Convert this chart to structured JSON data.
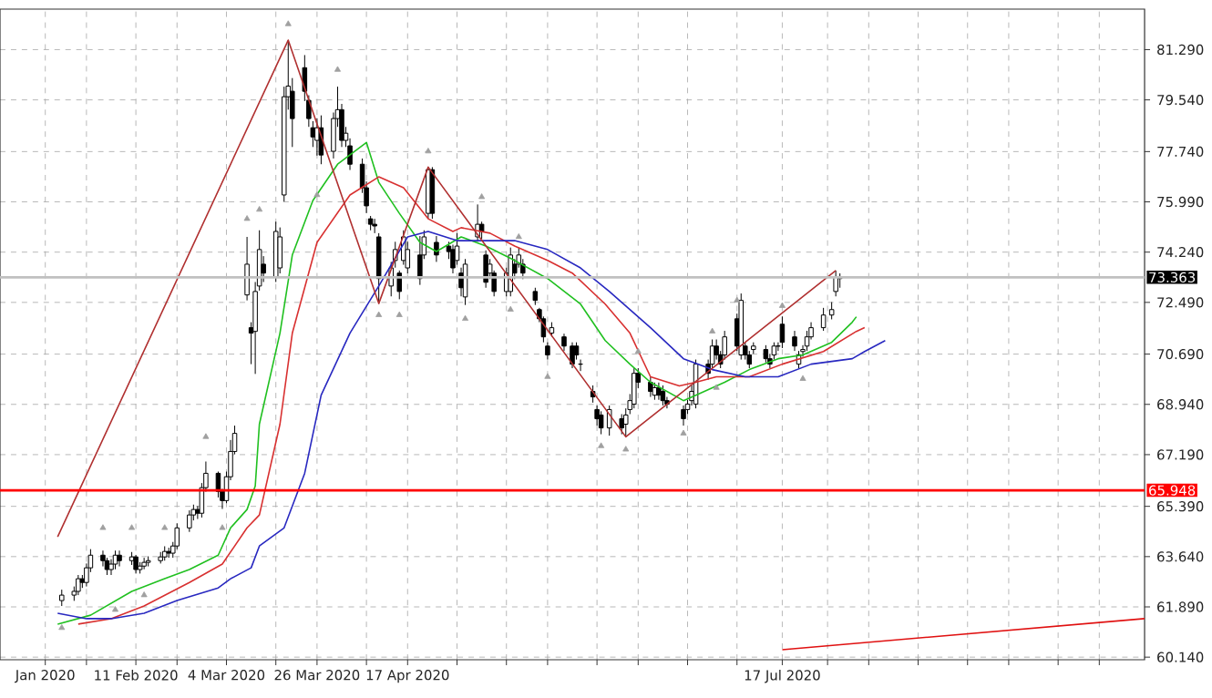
{
  "chart_data": {
    "type": "candlestick",
    "color": "#000000",
    "x": [
      "2020-01-24",
      "2020-01-27",
      "2020-01-28",
      "2020-01-29",
      "2020-01-30",
      "2020-01-31",
      "2020-02-03",
      "2020-02-04",
      "2020-02-05",
      "2020-02-06",
      "2020-02-07",
      "2020-02-10",
      "2020-02-11",
      "2020-02-12",
      "2020-02-13",
      "2020-02-14",
      "2020-02-17",
      "2020-02-18",
      "2020-02-19",
      "2020-02-20",
      "2020-02-21",
      "2020-02-24",
      "2020-02-25",
      "2020-02-26",
      "2020-02-27",
      "2020-02-28",
      "2020-03-02",
      "2020-03-03",
      "2020-03-04",
      "2020-03-05",
      "2020-03-06",
      "2020-03-09",
      "2020-03-10",
      "2020-03-11",
      "2020-03-12",
      "2020-03-13",
      "2020-03-16",
      "2020-03-17",
      "2020-03-18",
      "2020-03-19",
      "2020-03-20",
      "2020-03-23",
      "2020-03-24",
      "2020-03-25",
      "2020-03-26",
      "2020-03-27",
      "2020-03-30",
      "2020-03-31",
      "2020-04-01",
      "2020-04-02",
      "2020-04-03",
      "2020-04-06",
      "2020-04-07",
      "2020-04-08",
      "2020-04-09",
      "2020-04-10",
      "2020-04-13",
      "2020-04-14",
      "2020-04-15",
      "2020-04-16",
      "2020-04-17",
      "2020-04-20",
      "2020-04-21",
      "2020-04-22",
      "2020-04-23",
      "2020-04-24",
      "2020-04-27",
      "2020-04-28",
      "2020-04-29",
      "2020-04-30",
      "2020-05-01",
      "2020-05-04",
      "2020-05-05",
      "2020-05-06",
      "2020-05-07",
      "2020-05-08",
      "2020-05-11",
      "2020-05-12",
      "2020-05-13",
      "2020-05-14",
      "2020-05-15",
      "2020-05-18",
      "2020-05-19",
      "2020-05-20",
      "2020-05-21",
      "2020-05-22",
      "2020-05-25",
      "2020-05-27",
      "2020-05-28",
      "2020-05-29",
      "2020-06-01",
      "2020-06-02",
      "2020-06-03",
      "2020-06-05",
      "2020-06-08",
      "2020-06-09",
      "2020-06-10",
      "2020-06-11",
      "2020-06-12",
      "2020-06-15",
      "2020-06-16",
      "2020-06-17",
      "2020-06-18",
      "2020-06-19",
      "2020-06-23",
      "2020-06-24",
      "2020-06-25",
      "2020-06-26",
      "2020-06-29",
      "2020-06-30",
      "2020-07-01",
      "2020-07-02",
      "2020-07-03",
      "2020-07-06",
      "2020-07-07",
      "2020-07-08",
      "2020-07-09",
      "2020-07-10",
      "2020-07-13",
      "2020-07-14",
      "2020-07-15",
      "2020-07-16",
      "2020-07-17",
      "2020-07-20",
      "2020-07-21",
      "2020-07-22",
      "2020-07-23",
      "2020-07-24",
      "2020-07-27",
      "2020-07-29",
      "2020-07-30",
      "2020-07-31"
    ],
    "ohlc": [
      [
        62.11,
        62.49,
        61.92,
        62.3
      ],
      [
        62.3,
        62.6,
        62.1,
        62.43
      ],
      [
        62.43,
        63.0,
        62.3,
        62.87
      ],
      [
        62.87,
        63.0,
        62.55,
        62.74
      ],
      [
        62.74,
        63.4,
        62.6,
        63.25
      ],
      [
        63.25,
        63.9,
        63.1,
        63.69
      ],
      [
        63.69,
        63.85,
        63.3,
        63.5
      ],
      [
        63.5,
        63.6,
        63.0,
        63.19
      ],
      [
        63.19,
        63.55,
        63.0,
        63.38
      ],
      [
        63.38,
        63.85,
        63.2,
        63.69
      ],
      [
        63.69,
        63.85,
        63.3,
        63.5
      ],
      [
        63.5,
        63.8,
        63.35,
        63.63
      ],
      [
        63.63,
        63.7,
        63.05,
        63.19
      ],
      [
        63.19,
        63.45,
        63.05,
        63.31
      ],
      [
        63.31,
        63.6,
        63.2,
        63.44
      ],
      [
        63.44,
        63.65,
        63.3,
        63.5
      ],
      [
        63.5,
        63.8,
        63.4,
        63.63
      ],
      [
        63.63,
        64.0,
        63.5,
        63.82
      ],
      [
        63.82,
        63.95,
        63.6,
        63.76
      ],
      [
        63.76,
        64.15,
        63.6,
        64.01
      ],
      [
        64.01,
        64.8,
        63.9,
        64.64
      ],
      [
        64.64,
        65.25,
        64.5,
        65.09
      ],
      [
        65.09,
        65.45,
        64.9,
        65.28
      ],
      [
        65.28,
        65.4,
        64.95,
        65.15
      ],
      [
        65.15,
        66.2,
        65.0,
        66.04
      ],
      [
        66.04,
        66.95,
        65.9,
        66.54
      ],
      [
        66.54,
        66.6,
        65.7,
        65.91
      ],
      [
        65.91,
        66.0,
        65.3,
        65.59
      ],
      [
        65.59,
        66.6,
        65.5,
        66.42
      ],
      [
        66.42,
        67.7,
        66.3,
        67.3
      ],
      [
        67.3,
        68.2,
        67.2,
        67.93
      ],
      [
        72.75,
        74.77,
        72.56,
        73.82
      ],
      [
        71.61,
        71.8,
        70.34,
        71.42
      ],
      [
        71.48,
        73.2,
        70.0,
        72.87
      ],
      [
        73.06,
        75.0,
        72.9,
        74.33
      ],
      [
        73.82,
        74.1,
        73.2,
        73.51
      ],
      [
        73.38,
        75.3,
        73.2,
        74.96
      ],
      [
        73.69,
        75.1,
        73.5,
        74.77
      ],
      [
        76.23,
        80.0,
        76.0,
        79.65
      ],
      [
        79.65,
        81.62,
        79.2,
        80.02
      ],
      [
        79.84,
        80.3,
        77.9,
        78.89
      ],
      [
        80.66,
        81.1,
        79.5,
        79.84
      ],
      [
        79.52,
        79.7,
        78.6,
        78.89
      ],
      [
        78.57,
        78.8,
        77.9,
        78.25
      ],
      [
        78.13,
        78.9,
        77.6,
        78.57
      ],
      [
        78.57,
        79.0,
        77.3,
        77.62
      ],
      [
        77.75,
        79.1,
        77.5,
        78.89
      ],
      [
        78.89,
        80.0,
        78.6,
        79.2
      ],
      [
        79.2,
        79.4,
        77.9,
        78.13
      ],
      [
        78.13,
        78.6,
        77.9,
        78.38
      ],
      [
        77.94,
        78.2,
        77.1,
        77.3
      ],
      [
        77.3,
        77.5,
        76.3,
        76.48
      ],
      [
        76.48,
        76.7,
        75.6,
        75.85
      ],
      [
        75.4,
        75.5,
        75.0,
        75.21
      ],
      [
        75.21,
        75.4,
        74.9,
        75.15
      ],
      [
        74.77,
        74.9,
        72.45,
        73.32
      ],
      [
        73.06,
        73.9,
        72.7,
        73.69
      ],
      [
        73.95,
        74.6,
        73.7,
        74.33
      ],
      [
        73.51,
        73.6,
        72.6,
        72.87
      ],
      [
        73.95,
        75.0,
        73.8,
        74.77
      ],
      [
        73.69,
        74.6,
        73.5,
        74.33
      ],
      [
        74.14,
        74.8,
        73.1,
        73.32
      ],
      [
        74.14,
        75.0,
        74.0,
        74.77
      ],
      [
        75.59,
        77.2,
        75.4,
        77.11
      ],
      [
        77.11,
        77.2,
        75.4,
        75.59
      ],
      [
        74.58,
        74.8,
        73.9,
        74.14
      ],
      [
        74.45,
        74.6,
        74.0,
        74.26
      ],
      [
        74.33,
        74.5,
        73.5,
        73.69
      ],
      [
        73.95,
        74.9,
        73.8,
        74.45
      ],
      [
        73.51,
        73.7,
        72.7,
        73.0
      ],
      [
        72.68,
        74.0,
        72.4,
        73.82
      ],
      [
        74.77,
        75.9,
        74.6,
        75.21
      ],
      [
        75.21,
        75.3,
        74.7,
        74.96
      ],
      [
        74.14,
        74.3,
        73.0,
        73.19
      ],
      [
        73.51,
        74.0,
        73.3,
        73.82
      ],
      [
        73.51,
        73.6,
        72.7,
        72.87
      ],
      [
        72.87,
        73.7,
        72.7,
        73.51
      ],
      [
        72.87,
        74.4,
        72.7,
        74.14
      ],
      [
        73.82,
        74.0,
        73.3,
        73.51
      ],
      [
        73.82,
        74.4,
        73.7,
        74.14
      ],
      [
        73.82,
        74.0,
        73.3,
        73.51
      ],
      [
        72.87,
        73.0,
        72.4,
        72.56
      ],
      [
        72.24,
        72.3,
        71.8,
        71.92
      ],
      [
        71.92,
        72.0,
        71.1,
        71.29
      ],
      [
        70.97,
        71.1,
        70.5,
        70.66
      ],
      [
        71.42,
        71.8,
        71.3,
        71.61
      ],
      [
        71.29,
        71.4,
        70.8,
        70.97
      ],
      [
        70.97,
        71.1,
        70.2,
        70.34
      ],
      [
        70.97,
        71.1,
        70.5,
        70.66
      ],
      [
        70.34,
        70.5,
        70.1,
        70.34
      ],
      [
        69.39,
        69.6,
        69.0,
        69.2
      ],
      [
        68.76,
        68.9,
        68.2,
        68.44
      ],
      [
        68.57,
        68.7,
        67.9,
        68.12
      ],
      [
        68.12,
        68.9,
        67.85,
        68.76
      ],
      [
        68.44,
        68.6,
        67.9,
        68.12
      ],
      [
        68.25,
        68.8,
        67.81,
        68.57
      ],
      [
        68.76,
        69.3,
        68.6,
        69.07
      ],
      [
        68.95,
        70.2,
        68.8,
        70.02
      ],
      [
        70.02,
        70.2,
        69.5,
        69.71
      ],
      [
        69.71,
        69.9,
        69.2,
        69.39
      ],
      [
        69.26,
        69.7,
        69.1,
        69.52
      ],
      [
        69.52,
        69.7,
        69.1,
        69.26
      ],
      [
        69.39,
        69.6,
        68.9,
        69.07
      ],
      [
        69.07,
        69.2,
        68.8,
        68.95
      ],
      [
        68.76,
        68.9,
        68.2,
        68.44
      ],
      [
        68.76,
        69.1,
        68.6,
        68.95
      ],
      [
        69.07,
        69.6,
        68.9,
        69.39
      ],
      [
        68.95,
        70.5,
        68.8,
        70.34
      ],
      [
        70.34,
        70.5,
        69.8,
        70.02
      ],
      [
        70.34,
        71.2,
        70.2,
        70.97
      ],
      [
        70.97,
        71.2,
        70.5,
        70.66
      ],
      [
        70.66,
        70.8,
        70.2,
        70.34
      ],
      [
        70.66,
        71.5,
        70.5,
        71.29
      ],
      [
        71.92,
        72.1,
        70.8,
        70.97
      ],
      [
        70.66,
        72.8,
        70.5,
        72.56
      ],
      [
        70.97,
        71.1,
        70.5,
        70.66
      ],
      [
        70.66,
        70.8,
        70.2,
        70.34
      ],
      [
        70.85,
        71.1,
        70.7,
        70.97
      ],
      [
        70.85,
        71.0,
        70.4,
        70.53
      ],
      [
        70.53,
        70.7,
        70.2,
        70.34
      ],
      [
        70.66,
        71.1,
        70.5,
        70.97
      ],
      [
        70.97,
        71.1,
        70.8,
        70.97
      ],
      [
        71.73,
        72.0,
        70.9,
        71.1
      ],
      [
        71.29,
        71.5,
        70.8,
        70.97
      ],
      [
        70.34,
        70.8,
        70.2,
        70.66
      ],
      [
        70.78,
        71.0,
        70.6,
        70.85
      ],
      [
        70.97,
        71.5,
        70.8,
        71.29
      ],
      [
        71.29,
        71.8,
        71.2,
        71.61
      ],
      [
        71.61,
        72.3,
        71.5,
        72.05
      ],
      [
        72.05,
        72.5,
        71.9,
        72.24
      ],
      [
        72.87,
        73.6,
        72.7,
        73.38
      ],
      [
        73.32,
        73.5,
        73.0,
        73.36
      ]
    ],
    "series": [
      {
        "type": "line",
        "color": "#20c020",
        "x": [
          "2020-01-23",
          "2020-01-31",
          "2020-02-10",
          "2020-02-18",
          "2020-02-24",
          "2020-03-02",
          "2020-03-05",
          "2020-03-09",
          "2020-03-11",
          "2020-03-12",
          "2020-03-17",
          "2020-03-20",
          "2020-03-25",
          "2020-03-31",
          "2020-04-07",
          "2020-04-10",
          "2020-04-15",
          "2020-04-20",
          "2020-04-24",
          "2020-04-30",
          "2020-05-06",
          "2020-05-13",
          "2020-05-21",
          "2020-05-29",
          "2020-06-04",
          "2020-06-10",
          "2020-06-15",
          "2020-06-23",
          "2020-06-26",
          "2020-07-03",
          "2020-07-09",
          "2020-07-16",
          "2020-07-22",
          "2020-07-29",
          "2020-08-03",
          "2020-08-04"
        ],
        "values": [
          61.29,
          61.6,
          62.43,
          62.87,
          63.19,
          63.69,
          64.64,
          65.28,
          66.1,
          68.25,
          71.42,
          74.14,
          76.04,
          77.3,
          78.06,
          76.67,
          75.59,
          74.58,
          74.26,
          74.77,
          74.45,
          73.95,
          73.32,
          72.43,
          71.16,
          70.34,
          69.71,
          69.07,
          69.26,
          69.71,
          70.15,
          70.53,
          70.66,
          71.1,
          71.8,
          71.99
        ]
      },
      {
        "type": "line",
        "color": "#d83030",
        "x": [
          "2020-01-28",
          "2020-02-05",
          "2020-02-13",
          "2020-02-24",
          "2020-03-03",
          "2020-03-09",
          "2020-03-12",
          "2020-03-17",
          "2020-03-20",
          "2020-03-26",
          "2020-04-03",
          "2020-04-10",
          "2020-04-16",
          "2020-04-22",
          "2020-04-28",
          "2020-04-30",
          "2020-05-07",
          "2020-05-13",
          "2020-05-21",
          "2020-05-27",
          "2020-06-04",
          "2020-06-10",
          "2020-06-15",
          "2020-06-22",
          "2020-06-26",
          "2020-07-01",
          "2020-07-09",
          "2020-07-17",
          "2020-07-27",
          "2020-08-04",
          "2020-08-06"
        ],
        "values": [
          61.29,
          61.48,
          61.92,
          62.74,
          63.38,
          64.64,
          65.09,
          68.25,
          71.42,
          74.58,
          76.23,
          76.86,
          76.48,
          75.4,
          74.96,
          75.09,
          74.9,
          74.45,
          73.95,
          73.51,
          72.43,
          71.42,
          69.9,
          69.58,
          69.71,
          69.9,
          69.9,
          70.34,
          70.78,
          71.48,
          71.61
        ]
      },
      {
        "type": "line",
        "color": "#2828c0",
        "x": [
          "2020-01-23",
          "2020-01-30",
          "2020-02-05",
          "2020-02-13",
          "2020-02-21",
          "2020-03-02",
          "2020-03-05",
          "2020-03-10",
          "2020-03-12",
          "2020-03-18",
          "2020-03-23",
          "2020-03-27",
          "2020-04-03",
          "2020-04-10",
          "2020-04-17",
          "2020-04-22",
          "2020-04-29",
          "2020-05-13",
          "2020-05-21",
          "2020-05-29",
          "2020-06-05",
          "2020-06-15",
          "2020-06-23",
          "2020-06-30",
          "2020-07-08",
          "2020-07-16",
          "2020-07-24",
          "2020-08-03",
          "2020-08-06",
          "2020-08-11"
        ],
        "values": [
          61.67,
          61.48,
          61.48,
          61.67,
          62.11,
          62.55,
          62.87,
          63.25,
          64.01,
          64.64,
          66.54,
          69.26,
          71.42,
          73.06,
          74.77,
          74.96,
          74.64,
          74.64,
          74.33,
          73.69,
          72.87,
          71.61,
          70.53,
          70.15,
          69.9,
          69.9,
          70.34,
          70.53,
          70.78,
          71.16
        ]
      },
      {
        "type": "line",
        "color": "#b03030",
        "x": [
          "2020-01-23",
          "2020-03-19",
          "2020-04-10",
          "2020-04-22",
          "2020-06-09",
          "2020-07-30"
        ],
        "values": [
          64.33,
          81.62,
          72.45,
          77.2,
          67.81,
          73.6
        ]
      },
      {
        "type": "line",
        "color": "#e01010",
        "x": [
          "2020-07-17",
          "2020-10-13"
        ],
        "values": [
          60.4,
          61.48
        ]
      },
      {
        "type": "scatter",
        "marker": "triangle",
        "color": "#a0a0a0",
        "x": [
          "2020-02-03",
          "2020-02-10",
          "2020-02-18",
          "2020-02-28",
          "2020-03-09",
          "2020-03-12",
          "2020-03-19",
          "2020-03-31",
          "2020-04-22",
          "2020-05-05",
          "2020-05-14",
          "2020-06-12",
          "2020-06-30",
          "2020-07-06",
          "2020-07-17"
        ],
        "values": [
          64.64,
          64.64,
          64.64,
          67.81,
          75.4,
          75.72,
          82.18,
          80.59,
          77.75,
          76.16,
          74.77,
          70.78,
          71.48,
          72.56,
          72.37
        ]
      },
      {
        "type": "scatter",
        "marker": "triangle",
        "color": "#a0a0a0",
        "x": [
          "2020-01-24",
          "2020-02-06",
          "2020-02-13",
          "2020-03-03",
          "2020-03-26",
          "2020-04-10",
          "2020-04-15",
          "2020-05-01",
          "2020-05-12",
          "2020-05-21",
          "2020-06-03",
          "2020-06-09",
          "2020-06-23",
          "2020-07-01",
          "2020-07-22"
        ],
        "values": [
          61.16,
          61.79,
          62.3,
          64.64,
          76.23,
          72.05,
          72.05,
          71.92,
          72.24,
          69.9,
          67.49,
          67.37,
          67.93,
          69.52,
          69.83
        ]
      }
    ],
    "ref_lines": [
      {
        "axis": "y",
        "value": 65.948,
        "label": "65.948",
        "color": "#ff0000"
      },
      {
        "axis": "y",
        "value": 73.363,
        "label": "73.363",
        "color": "#c0c0c0"
      }
    ],
    "xlim": [
      "2020-01-09",
      "2020-10-13"
    ],
    "ylim": [
      60.05,
      82.7
    ],
    "xticks": [
      {
        "value": "2020-01-20",
        "label": "Jan 2020"
      },
      {
        "value": "2020-01-30",
        "label": null
      },
      {
        "value": "2020-02-11",
        "label": "11 Feb 2020"
      },
      {
        "value": "2020-02-21",
        "label": null
      },
      {
        "value": "2020-03-04",
        "label": "4 Mar 2020"
      },
      {
        "value": "2020-03-16",
        "label": null
      },
      {
        "value": "2020-03-26",
        "label": "26 Mar 2020"
      },
      {
        "value": "2020-04-07",
        "label": null
      },
      {
        "value": "2020-04-17",
        "label": "17 Apr 2020"
      },
      {
        "value": "2020-04-29",
        "label": null
      },
      {
        "value": "2020-05-11",
        "label": null
      },
      {
        "value": "2020-05-21",
        "label": null
      },
      {
        "value": "2020-06-02",
        "label": null
      },
      {
        "value": "2020-06-12",
        "label": null
      },
      {
        "value": "2020-06-24",
        "label": null
      },
      {
        "value": "2020-07-06",
        "label": null
      },
      {
        "value": "2020-07-17",
        "label": "17 Jul 2020"
      },
      {
        "value": "2020-07-28",
        "label": null
      },
      {
        "value": "2020-08-07",
        "label": null
      },
      {
        "value": "2020-08-19",
        "label": null
      },
      {
        "value": "2020-08-31",
        "label": null
      },
      {
        "value": "2020-09-10",
        "label": null
      },
      {
        "value": "2020-09-22",
        "label": null
      },
      {
        "value": "2020-10-02",
        "label": null
      }
    ],
    "yticks": [
      {
        "value": 81.29,
        "label": "81.290"
      },
      {
        "value": 79.54,
        "label": "79.540"
      },
      {
        "value": 77.74,
        "label": "77.740"
      },
      {
        "value": 75.99,
        "label": "75.990"
      },
      {
        "value": 74.24,
        "label": "74.240"
      },
      {
        "value": 72.49,
        "label": "72.490"
      },
      {
        "value": 70.69,
        "label": "70.690"
      },
      {
        "value": 68.94,
        "label": "68.940"
      },
      {
        "value": 67.19,
        "label": "67.190"
      },
      {
        "value": 65.39,
        "label": "65.390"
      },
      {
        "value": 63.64,
        "label": "63.640"
      },
      {
        "value": 61.89,
        "label": "61.890"
      },
      {
        "value": 60.14,
        "label": "60.140"
      }
    ],
    "grid": true
  }
}
